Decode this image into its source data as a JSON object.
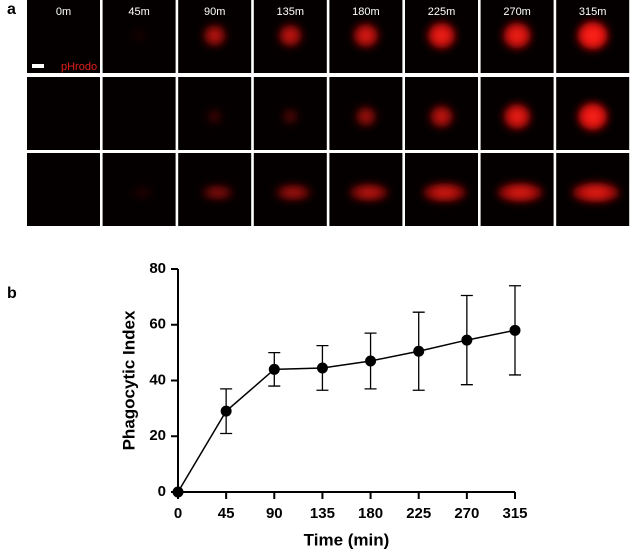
{
  "panel_a": {
    "label": "a",
    "time_labels": [
      "0m",
      "45m",
      "90m",
      "135m",
      "180m",
      "225m",
      "270m",
      "315m"
    ],
    "stain_label": "pHrodo"
  },
  "panel_b": {
    "label": "b"
  },
  "chart_data": {
    "type": "line",
    "xlabel": "Time (min)",
    "ylabel": "Phagocytic Index",
    "x": [
      0,
      45,
      90,
      135,
      180,
      225,
      270,
      315
    ],
    "values": [
      0,
      29,
      44,
      44.5,
      47,
      50.5,
      54.5,
      58
    ],
    "errors": [
      0,
      8,
      6,
      8,
      10,
      14,
      16,
      16
    ],
    "color": "#000000",
    "xlim": [
      0,
      315
    ],
    "xticks": [
      0,
      45,
      90,
      135,
      180,
      225,
      270,
      315
    ],
    "ylim": [
      0,
      80
    ],
    "yticks": [
      0,
      20,
      40,
      60,
      80
    ]
  }
}
